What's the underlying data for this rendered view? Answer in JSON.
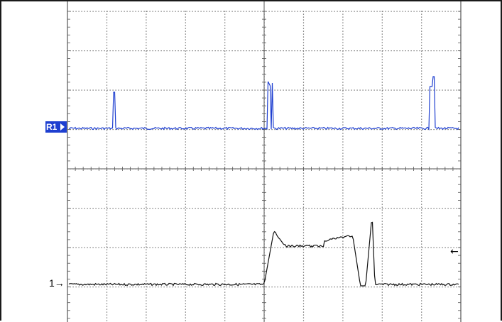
{
  "screen": {
    "type": "oscilloscope_display",
    "grid": {
      "divisions_x": 10,
      "divisions_y": 8
    },
    "trace_colors": {
      "ref1": "#1e3fd0",
      "ch1": "#000000",
      "grid": "#555555"
    }
  },
  "markers": {
    "ref1_label": "R1",
    "ch1_label": "1",
    "ch1_arrow": "→",
    "trigger_level_arrow": "←"
  }
}
